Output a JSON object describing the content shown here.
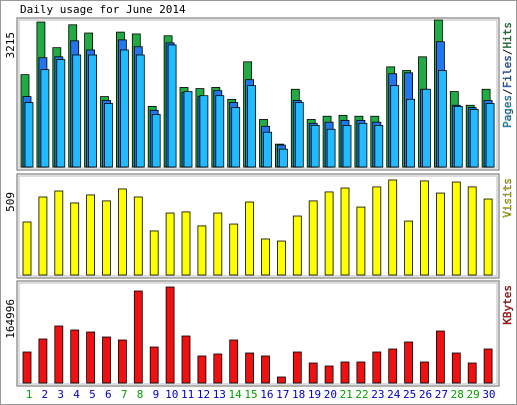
{
  "title": "Daily usage for June 2014",
  "legend_separator": "/",
  "categories": [
    "1",
    "2",
    "3",
    "4",
    "5",
    "6",
    "7",
    "8",
    "9",
    "10",
    "11",
    "12",
    "13",
    "14",
    "15",
    "16",
    "17",
    "18",
    "19",
    "20",
    "21",
    "22",
    "23",
    "24",
    "25",
    "26",
    "27",
    "28",
    "29",
    "30"
  ],
  "category_colors": [
    "#00a000",
    "#0000c0",
    "#0000c0",
    "#0000c0",
    "#0000c0",
    "#0000c0",
    "#00a000",
    "#00a000",
    "#0000c0",
    "#0000c0",
    "#0000c0",
    "#0000c0",
    "#0000c0",
    "#00a000",
    "#00a000",
    "#0000c0",
    "#0000c0",
    "#0000c0",
    "#0000c0",
    "#0000c0",
    "#00a000",
    "#00a000",
    "#0000c0",
    "#0000c0",
    "#0000c0",
    "#0000c0",
    "#0000c0",
    "#00a000",
    "#00a000",
    "#0000c0"
  ],
  "chart_data": [
    {
      "type": "bar",
      "ylim": [
        0,
        3215
      ],
      "yticks": [
        3215
      ],
      "series": [
        {
          "name": "Hits",
          "color": "#22aa44",
          "values": [
            2020,
            3170,
            2610,
            3110,
            2930,
            1540,
            2950,
            2910,
            1325,
            2870,
            1740,
            1715,
            1740,
            1480,
            2300,
            1040,
            500,
            1700,
            1040,
            1110,
            1130,
            1110,
            1110,
            2190,
            2110,
            2410,
            3215,
            1650,
            1350,
            1700
          ]
        },
        {
          "name": "Files",
          "color": "#2277ee",
          "values": [
            1540,
            2390,
            2410,
            2760,
            2560,
            1455,
            2780,
            2630,
            1240,
            2715,
            1630,
            1540,
            1670,
            1410,
            1910,
            890,
            480,
            1455,
            955,
            980,
            1020,
            1020,
            980,
            2040,
            2060,
            1700,
            2740,
            1350,
            1300,
            1455
          ]
        },
        {
          "name": "Pages",
          "color": "#22bbff",
          "values": [
            1410,
            2130,
            2350,
            2450,
            2450,
            1390,
            2560,
            2450,
            1150,
            2670,
            1650,
            1560,
            1560,
            1300,
            1780,
            760,
            390,
            1410,
            910,
            825,
            910,
            955,
            910,
            1780,
            1480,
            1700,
            2110,
            1325,
            1260,
            1390
          ]
        }
      ]
    },
    {
      "type": "bar",
      "ylim": [
        0,
        509
      ],
      "yticks": [
        509
      ],
      "series": [
        {
          "name": "Visits",
          "color": "#ffff00",
          "values": [
            284,
            418,
            450,
            386,
            429,
            397,
            461,
            418,
            236,
            332,
            338,
            263,
            332,
            273,
            391,
            193,
            182,
            316,
            397,
            445,
            466,
            364,
            472,
            509,
            289,
            504,
            439,
            498,
            472,
            407
          ]
        }
      ]
    },
    {
      "type": "bar",
      "ylim": [
        0,
        164996
      ],
      "yticks": [
        164996
      ],
      "series": [
        {
          "name": "KBytes",
          "color": "#ee1111",
          "values": [
            53280,
            75620,
            97960,
            91090,
            87650,
            79060,
            73900,
            158120,
            61870,
            164996,
            80780,
            46410,
            49840,
            73900,
            51560,
            46410,
            10310,
            53280,
            34370,
            29220,
            36090,
            36090,
            53280,
            58440,
            70470,
            36090,
            89370,
            51560,
            34370,
            58440
          ]
        }
      ]
    }
  ]
}
